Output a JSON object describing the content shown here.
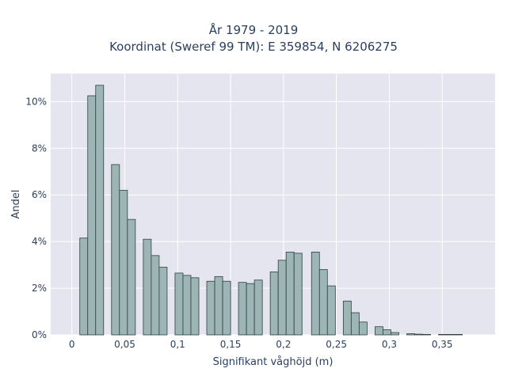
{
  "chart_data": {
    "type": "bar",
    "title": "År 1979 - 2019",
    "subtitle": "Koordinat (Sweref 99 TM): E 359854, N 6206275",
    "xlabel": "Signifikant våghöjd (m)",
    "ylabel": "Andel",
    "xlim": [
      -0.02,
      0.4
    ],
    "ylim": [
      0,
      11.2
    ],
    "x_ticks": [
      0,
      0.05,
      0.1,
      0.15,
      0.2,
      0.25,
      0.3,
      0.35
    ],
    "x_tick_labels": [
      "0",
      "0,05",
      "0,1",
      "0,15",
      "0,2",
      "0,25",
      "0,3",
      "0,35"
    ],
    "y_ticks": [
      0,
      2,
      4,
      6,
      8,
      10
    ],
    "y_tick_labels": [
      "0%",
      "2%",
      "4%",
      "6%",
      "8%",
      "10%"
    ],
    "bin_width": 0.0075,
    "bins": [
      {
        "x0": 0.0075,
        "value": 4.15
      },
      {
        "x0": 0.015,
        "value": 10.25
      },
      {
        "x0": 0.0225,
        "value": 10.7
      },
      {
        "x0": 0.0375,
        "value": 7.3
      },
      {
        "x0": 0.045,
        "value": 6.2
      },
      {
        "x0": 0.0525,
        "value": 4.95
      },
      {
        "x0": 0.0675,
        "value": 4.1
      },
      {
        "x0": 0.075,
        "value": 3.4
      },
      {
        "x0": 0.0825,
        "value": 2.9
      },
      {
        "x0": 0.0975,
        "value": 2.65
      },
      {
        "x0": 0.105,
        "value": 2.55
      },
      {
        "x0": 0.1125,
        "value": 2.45
      },
      {
        "x0": 0.1275,
        "value": 2.3
      },
      {
        "x0": 0.135,
        "value": 2.5
      },
      {
        "x0": 0.1425,
        "value": 2.3
      },
      {
        "x0": 0.1575,
        "value": 2.25
      },
      {
        "x0": 0.165,
        "value": 2.2
      },
      {
        "x0": 0.1725,
        "value": 2.35
      },
      {
        "x0": 0.1875,
        "value": 2.7
      },
      {
        "x0": 0.195,
        "value": 3.2
      },
      {
        "x0": 0.2025,
        "value": 3.55
      },
      {
        "x0": 0.21,
        "value": 3.5
      },
      {
        "x0": 0.2265,
        "value": 3.55
      },
      {
        "x0": 0.234,
        "value": 2.8
      },
      {
        "x0": 0.2415,
        "value": 2.1
      },
      {
        "x0": 0.2565,
        "value": 1.45
      },
      {
        "x0": 0.264,
        "value": 0.95
      },
      {
        "x0": 0.2715,
        "value": 0.55
      },
      {
        "x0": 0.2865,
        "value": 0.35
      },
      {
        "x0": 0.294,
        "value": 0.22
      },
      {
        "x0": 0.3015,
        "value": 0.1
      },
      {
        "x0": 0.3165,
        "value": 0.05
      },
      {
        "x0": 0.324,
        "value": 0.03
      },
      {
        "x0": 0.3315,
        "value": 0.02
      },
      {
        "x0": 0.3465,
        "value": 0.02
      },
      {
        "x0": 0.354,
        "value": 0.02
      },
      {
        "x0": 0.3615,
        "value": 0.02
      }
    ],
    "bar_color": "#9db5b5",
    "bar_edge_color": "#2f3f3f",
    "plot_background": "#e5e5ef",
    "grid": true,
    "legend": false
  }
}
